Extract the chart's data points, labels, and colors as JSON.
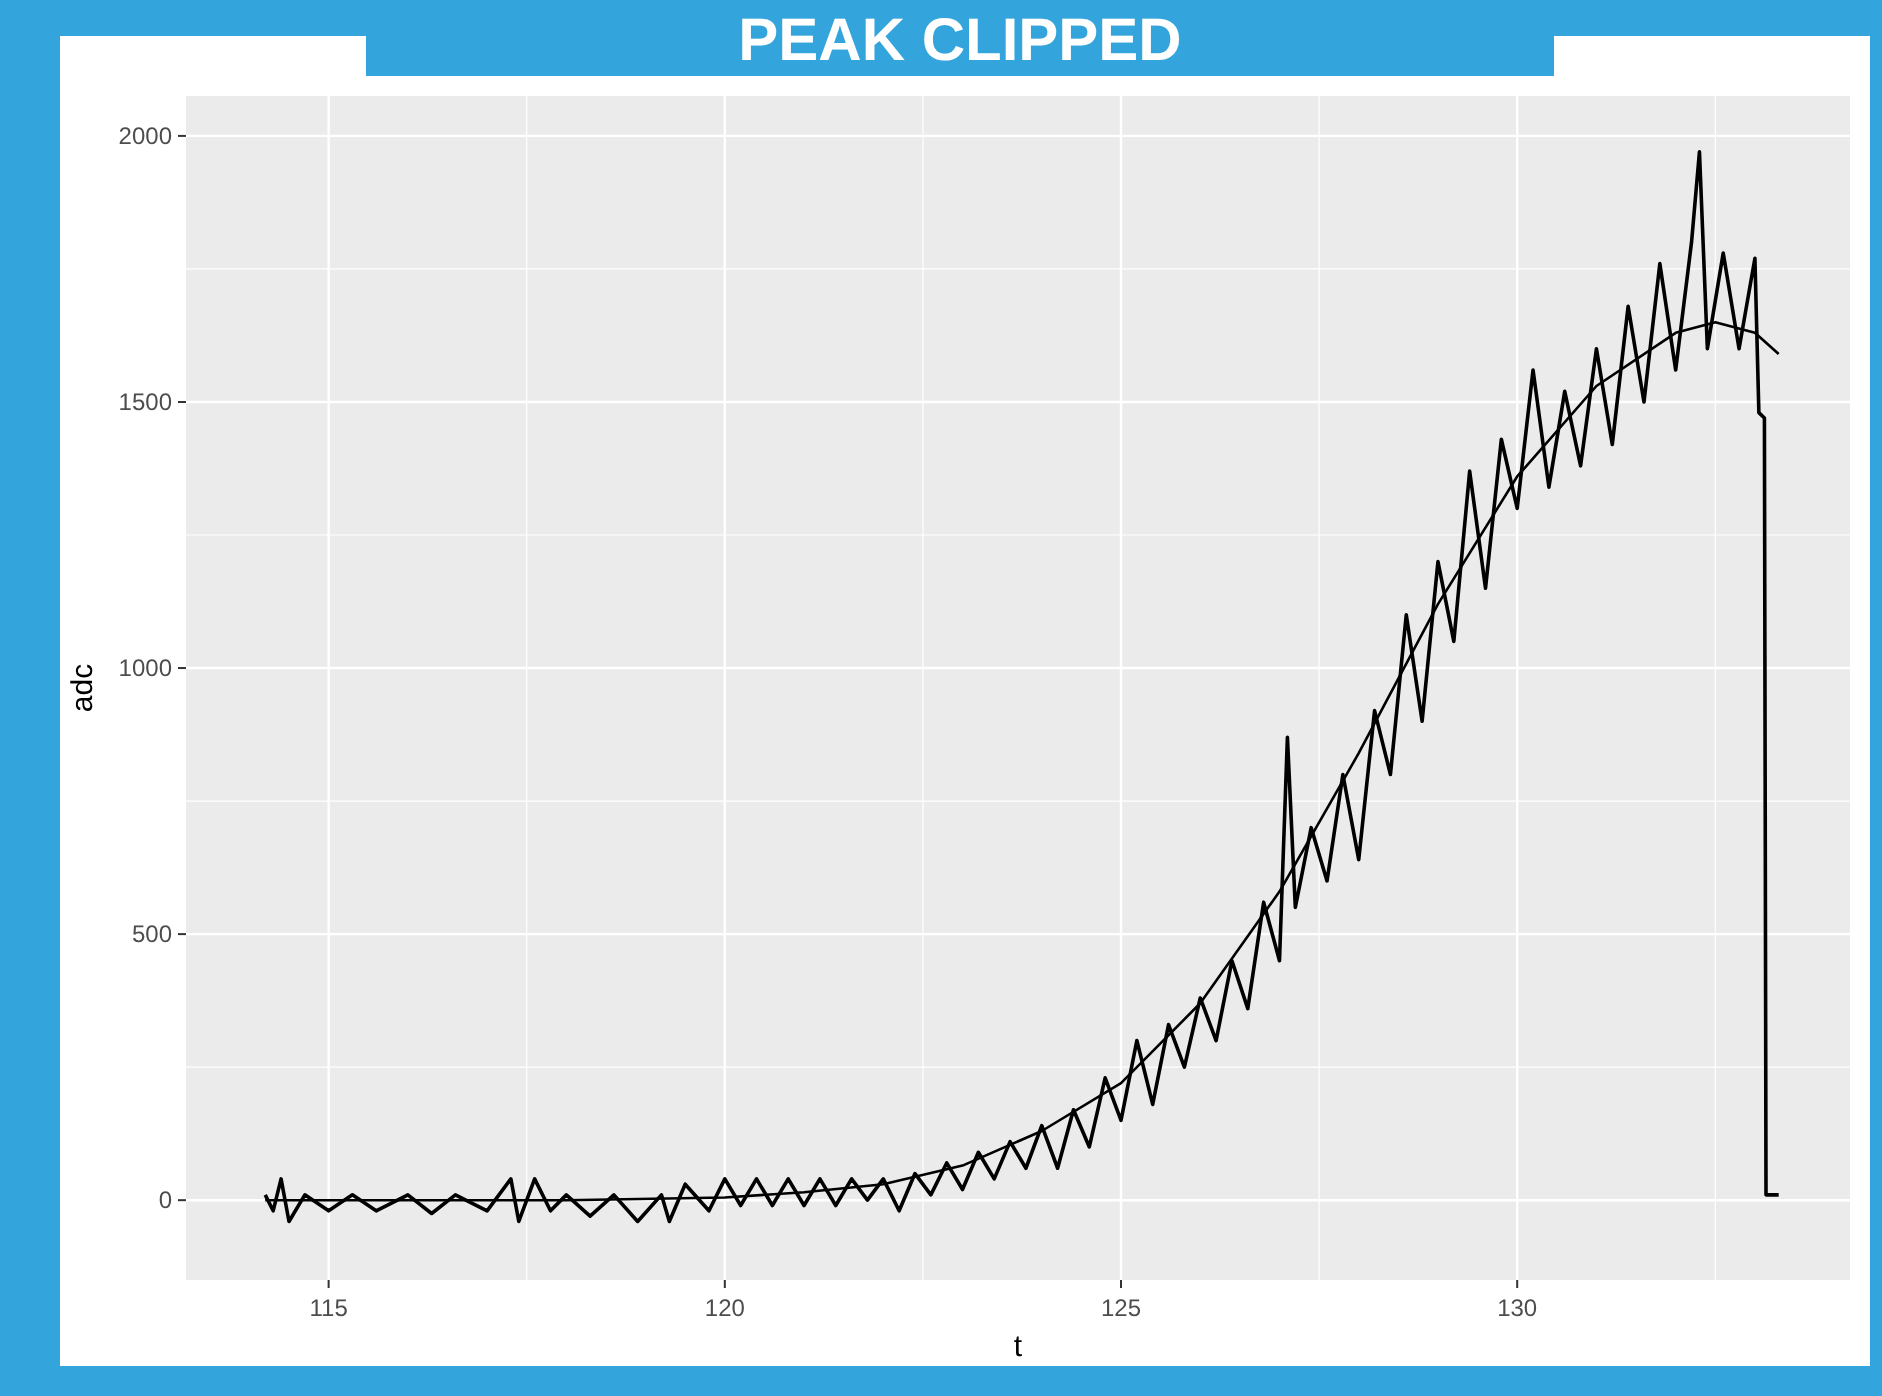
{
  "chart_data": {
    "type": "line",
    "title": "PEAK CLIPPED",
    "xlabel": "t",
    "ylabel": "adc",
    "xlim": [
      113.2,
      134.2
    ],
    "ylim": [
      -150,
      2075
    ],
    "xticks": [
      115,
      120,
      125,
      130
    ],
    "yticks": [
      0,
      500,
      1000,
      1500,
      2000
    ],
    "grid": true,
    "series": [
      {
        "color": "#000000",
        "x": [
          114.2,
          114.3,
          114.4,
          114.5,
          114.7,
          115.0,
          115.3,
          115.6,
          116.0,
          116.3,
          116.6,
          117.0,
          117.3,
          117.4,
          117.6,
          117.8,
          118.0,
          118.3,
          118.6,
          118.9,
          119.2,
          119.3,
          119.5,
          119.8,
          120.0,
          120.2,
          120.4,
          120.6,
          120.8,
          121.0,
          121.2,
          121.4,
          121.6,
          121.8,
          122.0,
          122.2,
          122.4,
          122.6,
          122.8,
          123.0,
          123.2,
          123.4,
          123.6,
          123.8,
          124.0,
          124.2,
          124.4,
          124.6,
          124.8,
          125.0,
          125.2,
          125.4,
          125.6,
          125.8,
          126.0,
          126.2,
          126.4,
          126.6,
          126.8,
          127.0,
          127.1,
          127.2,
          127.4,
          127.6,
          127.8,
          128.0,
          128.2,
          128.4,
          128.6,
          128.8,
          129.0,
          129.2,
          129.4,
          129.6,
          129.8,
          130.0,
          130.2,
          130.4,
          130.6,
          130.8,
          131.0,
          131.2,
          131.4,
          131.6,
          131.8,
          132.0,
          132.2,
          132.3,
          132.4,
          132.6,
          132.8,
          133.0,
          133.05,
          133.12,
          133.14,
          133.3
        ],
        "values": [
          10,
          -20,
          40,
          -40,
          10,
          -20,
          10,
          -20,
          10,
          -25,
          10,
          -20,
          40,
          -40,
          40,
          -20,
          10,
          -30,
          10,
          -40,
          10,
          -40,
          30,
          -20,
          40,
          -10,
          40,
          -10,
          40,
          -10,
          40,
          -10,
          40,
          0,
          40,
          -20,
          50,
          10,
          70,
          20,
          90,
          40,
          110,
          60,
          140,
          60,
          170,
          100,
          230,
          150,
          300,
          180,
          330,
          250,
          380,
          300,
          450,
          360,
          560,
          450,
          870,
          550,
          700,
          600,
          800,
          640,
          920,
          800,
          1100,
          900,
          1200,
          1050,
          1370,
          1150,
          1430,
          1300,
          1560,
          1340,
          1520,
          1380,
          1600,
          1420,
          1680,
          1500,
          1760,
          1560,
          1800,
          1970,
          1600,
          1780,
          1600,
          1770,
          1480,
          1470,
          10,
          10
        ]
      },
      {
        "color": "#000000",
        "x": [
          114.2,
          118,
          120,
          121,
          122,
          123,
          124,
          125,
          126,
          127,
          128,
          129,
          130,
          131,
          132,
          132.5,
          133,
          133.3
        ],
        "values": [
          0,
          0,
          5,
          15,
          30,
          65,
          130,
          220,
          370,
          580,
          840,
          1120,
          1360,
          1530,
          1630,
          1650,
          1630,
          1590
        ]
      }
    ]
  }
}
